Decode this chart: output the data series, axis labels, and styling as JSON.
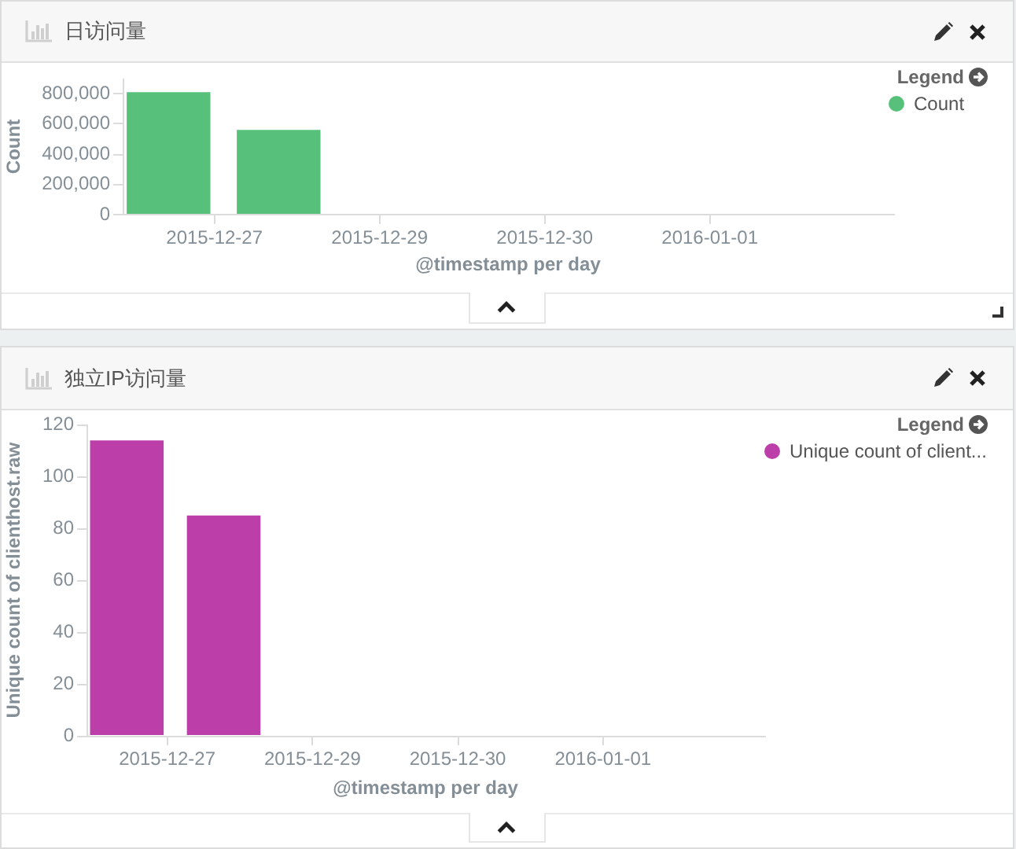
{
  "chart_data": [
    {
      "type": "bar",
      "title": "日访问量",
      "xlabel": "@timestamp per day",
      "ylabel": "Count",
      "legend_title": "Legend",
      "legend": "top right",
      "x": [
        "2015-12-27T02:00",
        "2015-12-28T02:00"
      ],
      "series": [
        {
          "name": "Count",
          "color": "#57c17b",
          "values": [
            810000,
            560000
          ]
        }
      ],
      "xlim": [
        "2015-12-26T16:00",
        "2016-01-02T16:00"
      ],
      "xticks": [
        {
          "value": "2015-12-27T12:00",
          "label": "2015-12-27"
        },
        {
          "value": "2015-12-29T00:00",
          "label": "2015-12-29"
        },
        {
          "value": "2015-12-30T12:00",
          "label": "2015-12-30"
        },
        {
          "value": "2016-01-01T00:00",
          "label": "2016-01-01"
        }
      ],
      "ylim": [
        0,
        900000
      ],
      "yticks": [
        0,
        {
          "value": 200000,
          "label": "200,000"
        },
        {
          "value": 400000,
          "label": "400,000"
        },
        {
          "value": 600000,
          "label": "600,000"
        },
        {
          "value": 800000,
          "label": "800,000"
        }
      ]
    },
    {
      "type": "bar",
      "title": "独立IP访问量",
      "xlabel": "@timestamp per day",
      "ylabel": "Unique count of clienthost.raw",
      "legend_title": "Legend",
      "legend": "top right",
      "x": [
        "2015-12-27T02:00",
        "2015-12-28T02:00"
      ],
      "series": [
        {
          "name": "Unique count of client...",
          "color": "#bc3fa9",
          "values": [
            114,
            85
          ]
        }
      ],
      "xlim": [
        "2015-12-26T16:00",
        "2016-01-02T16:00"
      ],
      "xticks": [
        {
          "value": "2015-12-27T12:00",
          "label": "2015-12-27"
        },
        {
          "value": "2015-12-29T00:00",
          "label": "2015-12-29"
        },
        {
          "value": "2015-12-30T12:00",
          "label": "2015-12-30"
        },
        {
          "value": "2016-01-01T00:00",
          "label": "2016-01-01"
        }
      ],
      "ylim": [
        0,
        120
      ],
      "yticks": [
        0,
        20,
        40,
        60,
        80,
        100,
        120
      ]
    }
  ]
}
